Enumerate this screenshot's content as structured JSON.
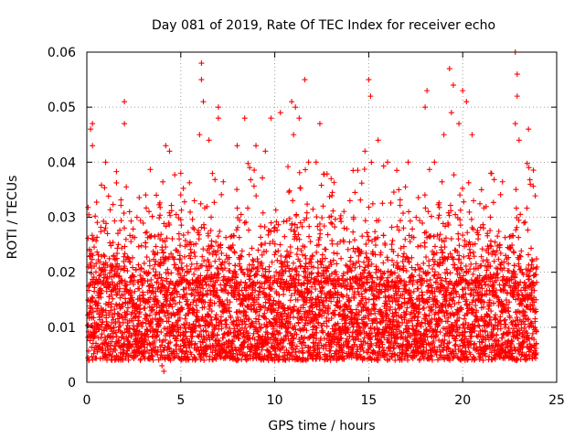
{
  "chart_data": {
    "type": "scatter",
    "title": "Day 081 of 2019, Rate Of TEC Index for receiver echo",
    "xlabel": "GPS time / hours",
    "ylabel": "ROTI / TECUs",
    "xlim": [
      0,
      25
    ],
    "ylim": [
      0,
      0.06
    ],
    "x_ticks": [
      0,
      5,
      10,
      15,
      20,
      25
    ],
    "x_tick_labels": [
      "0",
      "5",
      "10",
      "15",
      "20",
      "25"
    ],
    "y_ticks": [
      0,
      0.01,
      0.02,
      0.03,
      0.04,
      0.05,
      0.06
    ],
    "y_tick_labels": [
      "0",
      "0.01",
      "0.02",
      "0.03",
      "0.04",
      "0.05",
      "0.06"
    ],
    "grid": true,
    "legend": "none",
    "marker": "plus",
    "series": [
      {
        "color": "#ff0000",
        "baseline_band": [
          0.004,
          0.018
        ],
        "points": [
          [
            0.2,
            0.046
          ],
          [
            0.3,
            0.047
          ],
          [
            0.3,
            0.043
          ],
          [
            1.0,
            0.04
          ],
          [
            2.0,
            0.051
          ],
          [
            2.0,
            0.047
          ],
          [
            4.2,
            0.043
          ],
          [
            4.4,
            0.042
          ],
          [
            3.7,
            0.034
          ],
          [
            5.0,
            0.038
          ],
          [
            6.1,
            0.058
          ],
          [
            6.1,
            0.055
          ],
          [
            6.2,
            0.051
          ],
          [
            6.0,
            0.045
          ],
          [
            6.5,
            0.044
          ],
          [
            7.0,
            0.05
          ],
          [
            7.0,
            0.048
          ],
          [
            8.4,
            0.048
          ],
          [
            8.0,
            0.043
          ],
          [
            9.0,
            0.043
          ],
          [
            9.5,
            0.042
          ],
          [
            9.8,
            0.048
          ],
          [
            10.3,
            0.049
          ],
          [
            10.9,
            0.051
          ],
          [
            11.1,
            0.05
          ],
          [
            11.3,
            0.048
          ],
          [
            11.6,
            0.055
          ],
          [
            11.0,
            0.045
          ],
          [
            11.8,
            0.04
          ],
          [
            12.4,
            0.047
          ],
          [
            12.2,
            0.04
          ],
          [
            13.0,
            0.037
          ],
          [
            14.0,
            0.033
          ],
          [
            14.2,
            0.03
          ],
          [
            14.8,
            0.042
          ],
          [
            15.0,
            0.055
          ],
          [
            15.1,
            0.052
          ],
          [
            15.5,
            0.044
          ],
          [
            16.0,
            0.04
          ],
          [
            16.6,
            0.035
          ],
          [
            17.1,
            0.04
          ],
          [
            18.0,
            0.05
          ],
          [
            18.1,
            0.053
          ],
          [
            18.5,
            0.04
          ],
          [
            19.0,
            0.045
          ],
          [
            19.3,
            0.057
          ],
          [
            19.5,
            0.054
          ],
          [
            19.4,
            0.049
          ],
          [
            19.8,
            0.047
          ],
          [
            20.0,
            0.053
          ],
          [
            20.2,
            0.051
          ],
          [
            20.5,
            0.045
          ],
          [
            21.0,
            0.035
          ],
          [
            21.5,
            0.038
          ],
          [
            22.8,
            0.06
          ],
          [
            22.9,
            0.056
          ],
          [
            22.9,
            0.052
          ],
          [
            22.8,
            0.047
          ],
          [
            23.0,
            0.044
          ],
          [
            23.5,
            0.046
          ],
          [
            23.6,
            0.036
          ],
          [
            0.1,
            0.004
          ],
          [
            0.5,
            0.01
          ],
          [
            1.0,
            0.005
          ],
          [
            2.0,
            0.007
          ],
          [
            3.0,
            0.005
          ],
          [
            4.1,
            0.002
          ],
          [
            4.0,
            0.003
          ],
          [
            5.0,
            0.006
          ],
          [
            6.0,
            0.005
          ],
          [
            7.0,
            0.007
          ],
          [
            8.0,
            0.005
          ],
          [
            9.0,
            0.006
          ],
          [
            10.0,
            0.004
          ],
          [
            11.0,
            0.006
          ],
          [
            12.0,
            0.005
          ],
          [
            13.0,
            0.007
          ],
          [
            14.0,
            0.005
          ],
          [
            15.0,
            0.006
          ],
          [
            16.0,
            0.004
          ],
          [
            17.0,
            0.006
          ],
          [
            18.0,
            0.005
          ],
          [
            19.0,
            0.007
          ],
          [
            20.0,
            0.005
          ],
          [
            21.0,
            0.006
          ],
          [
            22.0,
            0.005
          ],
          [
            23.0,
            0.007
          ],
          [
            23.9,
            0.005
          ]
        ]
      }
    ]
  }
}
